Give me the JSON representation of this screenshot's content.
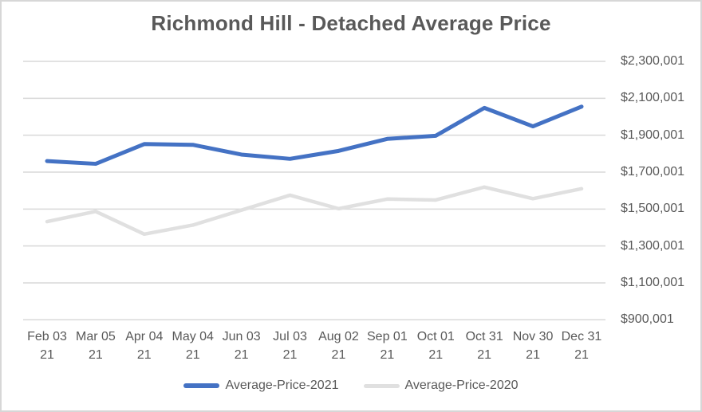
{
  "title": "Richmond Hill - Detached Average Price",
  "colors": {
    "series_2021": "#4472C4",
    "series_2020": "#E0E0E0",
    "gridline": "#D9D9D9",
    "axis_text": "#595959",
    "title_text": "#595959",
    "chart_border": "#D7D7D7"
  },
  "chart_data": {
    "type": "line",
    "title": "Richmond Hill - Detached Average Price",
    "categories": [
      "Feb 03 21",
      "Mar 05 21",
      "Apr 04 21",
      "May 04 21",
      "Jun 03 21",
      "Jul 03 21",
      "Aug 02 21",
      "Sep 01 21",
      "Oct 01 21",
      "Oct 31 21",
      "Nov 30 21",
      "Dec 31 21"
    ],
    "series": [
      {
        "name": "Average-Price-2021",
        "color": "#4472C4",
        "values": [
          1760000,
          1745000,
          1852000,
          1848000,
          1795000,
          1772000,
          1815000,
          1880000,
          1897000,
          2048000,
          1948000,
          2055000
        ]
      },
      {
        "name": "Average-Price-2020",
        "color": "#E0E0E0",
        "values": [
          1432000,
          1487000,
          1364000,
          1413000,
          1494000,
          1575000,
          1502000,
          1554000,
          1549000,
          1619000,
          1556000,
          1610000
        ]
      }
    ],
    "y_axis": {
      "min": 900001,
      "max": 2300001,
      "step": 200000,
      "side": "right",
      "tick_labels": [
        "$2,300,001",
        "$2,100,001",
        "$1,900,001",
        "$1,700,001",
        "$1,500,001",
        "$1,300,001",
        "$1,100,001",
        "$900,001"
      ]
    },
    "xlabel": "",
    "ylabel": "",
    "grid": "horizontal",
    "legend_position": "bottom"
  }
}
